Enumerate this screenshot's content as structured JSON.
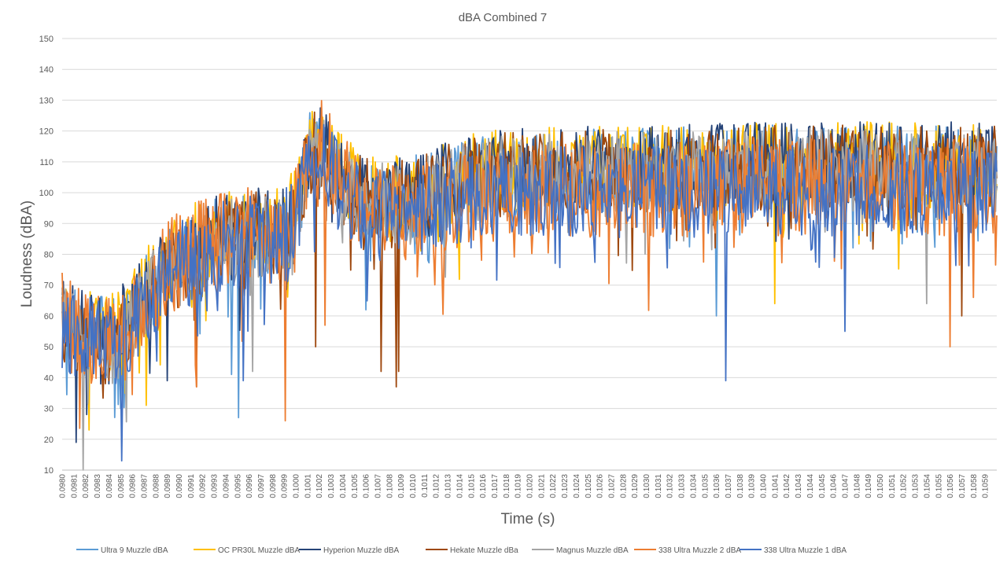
{
  "chart_data": {
    "type": "line",
    "title": "dBA Combined 7",
    "xlabel": "Time (s)",
    "ylabel": "Loudness (dBA)",
    "ylim": [
      10,
      150
    ],
    "yticks": [
      10,
      20,
      30,
      40,
      50,
      60,
      70,
      80,
      90,
      100,
      110,
      120,
      130,
      140,
      150
    ],
    "xlim": [
      0.098,
      0.106
    ],
    "xtick_start": 0.098,
    "xtick_step": 0.0001,
    "xtick_count": 80,
    "grid": true,
    "legend_position": "bottom",
    "series": [
      {
        "name": "Ultra 9 Muzzle dBA",
        "color": "#5B9BD5",
        "anchors": [
          [
            0.098,
            58
          ],
          [
            0.0981,
            56
          ],
          [
            0.0982,
            52
          ],
          [
            0.0983,
            55
          ],
          [
            0.0984,
            52
          ],
          [
            0.0985,
            55
          ],
          [
            0.0986,
            60
          ],
          [
            0.0987,
            66
          ],
          [
            0.0988,
            70
          ],
          [
            0.0989,
            75
          ],
          [
            0.099,
            78
          ],
          [
            0.0991,
            80
          ],
          [
            0.0992,
            82
          ],
          [
            0.0993,
            84
          ],
          [
            0.0994,
            86
          ],
          [
            0.0995,
            84
          ],
          [
            0.0996,
            86
          ],
          [
            0.0997,
            88
          ],
          [
            0.0998,
            86
          ],
          [
            0.0999,
            88
          ],
          [
            0.1,
            92
          ],
          [
            0.1001,
            112
          ],
          [
            0.1002,
            115
          ],
          [
            0.1003,
            110
          ],
          [
            0.1005,
            100
          ],
          [
            0.1007,
            97
          ],
          [
            0.1008,
            97
          ],
          [
            0.101,
            98
          ],
          [
            0.1012,
            100
          ],
          [
            0.1014,
            103
          ],
          [
            0.1016,
            105
          ],
          [
            0.102,
            106
          ],
          [
            0.1025,
            107
          ],
          [
            0.103,
            107
          ],
          [
            0.104,
            108
          ],
          [
            0.105,
            108
          ],
          [
            0.106,
            108
          ]
        ],
        "amp": 14,
        "dips": [
          [
            0.09945,
            41
          ],
          [
            0.09951,
            27
          ],
          [
            0.0985,
            30
          ],
          [
            0.1006,
            62
          ],
          [
            0.1036,
            60
          ]
        ]
      },
      {
        "name": "OC PR30L Muzzle dBA",
        "color": "#FFC000",
        "anchors": [
          [
            0.098,
            62
          ],
          [
            0.0981,
            60
          ],
          [
            0.0982,
            54
          ],
          [
            0.0983,
            56
          ],
          [
            0.0984,
            54
          ],
          [
            0.0985,
            56
          ],
          [
            0.0986,
            62
          ],
          [
            0.0987,
            67
          ],
          [
            0.0988,
            72
          ],
          [
            0.0989,
            76
          ],
          [
            0.099,
            80
          ],
          [
            0.0991,
            82
          ],
          [
            0.0992,
            84
          ],
          [
            0.0993,
            86
          ],
          [
            0.0994,
            88
          ],
          [
            0.0995,
            86
          ],
          [
            0.0996,
            88
          ],
          [
            0.0997,
            90
          ],
          [
            0.0998,
            88
          ],
          [
            0.0999,
            90
          ],
          [
            0.1,
            94
          ],
          [
            0.1001,
            114
          ],
          [
            0.1002,
            116
          ],
          [
            0.1003,
            111
          ],
          [
            0.1005,
            101
          ],
          [
            0.1007,
            98
          ],
          [
            0.1008,
            98
          ],
          [
            0.101,
            99
          ],
          [
            0.1012,
            101
          ],
          [
            0.1014,
            104
          ],
          [
            0.1016,
            106
          ],
          [
            0.102,
            107
          ],
          [
            0.1025,
            108
          ],
          [
            0.103,
            108
          ],
          [
            0.104,
            109
          ],
          [
            0.105,
            109
          ],
          [
            0.106,
            109
          ]
        ],
        "amp": 14,
        "dips": [
          [
            0.09823,
            23
          ],
          [
            0.09872,
            31
          ],
          [
            0.1041,
            64
          ],
          [
            0.1057,
            72
          ]
        ]
      },
      {
        "name": "Hyperion Muzzle dBA",
        "color": "#264478",
        "anchors": [
          [
            0.098,
            60
          ],
          [
            0.0981,
            58
          ],
          [
            0.0982,
            55
          ],
          [
            0.0983,
            57
          ],
          [
            0.0984,
            54
          ],
          [
            0.0985,
            57
          ],
          [
            0.0986,
            62
          ],
          [
            0.0987,
            68
          ],
          [
            0.0988,
            72
          ],
          [
            0.0989,
            77
          ],
          [
            0.099,
            80
          ],
          [
            0.0991,
            82
          ],
          [
            0.0992,
            84
          ],
          [
            0.0993,
            86
          ],
          [
            0.0994,
            87
          ],
          [
            0.0995,
            85
          ],
          [
            0.0996,
            87
          ],
          [
            0.0997,
            89
          ],
          [
            0.0998,
            87
          ],
          [
            0.0999,
            89
          ],
          [
            0.1,
            93
          ],
          [
            0.1001,
            113
          ],
          [
            0.1002,
            116
          ],
          [
            0.1003,
            111
          ],
          [
            0.1005,
            101
          ],
          [
            0.1007,
            98
          ],
          [
            0.1008,
            98
          ],
          [
            0.101,
            99
          ],
          [
            0.1012,
            102
          ],
          [
            0.1014,
            105
          ],
          [
            0.1016,
            107
          ],
          [
            0.102,
            108
          ],
          [
            0.1025,
            109
          ],
          [
            0.103,
            109
          ],
          [
            0.104,
            110
          ],
          [
            0.105,
            110
          ],
          [
            0.106,
            110
          ]
        ],
        "amp": 13,
        "dips": [
          [
            0.09812,
            19
          ],
          [
            0.09821,
            28
          ],
          [
            0.0984,
            38
          ],
          [
            0.0989,
            39
          ]
        ]
      },
      {
        "name": "Hekate Muzzle dBa",
        "color": "#9E480E",
        "anchors": [
          [
            0.098,
            57
          ],
          [
            0.0981,
            55
          ],
          [
            0.0982,
            51
          ],
          [
            0.0983,
            54
          ],
          [
            0.0984,
            51
          ],
          [
            0.0985,
            54
          ],
          [
            0.0986,
            59
          ],
          [
            0.0987,
            65
          ],
          [
            0.0988,
            70
          ],
          [
            0.0989,
            74
          ],
          [
            0.099,
            77
          ],
          [
            0.0991,
            79
          ],
          [
            0.0992,
            81
          ],
          [
            0.0993,
            83
          ],
          [
            0.0994,
            85
          ],
          [
            0.0995,
            83
          ],
          [
            0.0996,
            85
          ],
          [
            0.0997,
            87
          ],
          [
            0.0998,
            85
          ],
          [
            0.0999,
            87
          ],
          [
            0.1,
            91
          ],
          [
            0.1001,
            111
          ],
          [
            0.1002,
            114
          ],
          [
            0.1003,
            109
          ],
          [
            0.1005,
            99
          ],
          [
            0.1007,
            96
          ],
          [
            0.1008,
            96
          ],
          [
            0.101,
            97
          ],
          [
            0.1012,
            100
          ],
          [
            0.1014,
            103
          ],
          [
            0.1016,
            105
          ],
          [
            0.102,
            106
          ],
          [
            0.1025,
            107
          ],
          [
            0.103,
            107
          ],
          [
            0.104,
            108
          ],
          [
            0.105,
            108
          ],
          [
            0.106,
            108
          ]
        ],
        "amp": 14,
        "dips": [
          [
            0.09915,
            37
          ],
          [
            0.10017,
            50
          ],
          [
            0.10073,
            42
          ],
          [
            0.10086,
            37
          ],
          [
            0.10088,
            42
          ],
          [
            0.1057,
            60
          ]
        ]
      },
      {
        "name": "Magnus Muzzle dBA",
        "color": "#A5A5A5",
        "anchors": [
          [
            0.098,
            58
          ],
          [
            0.0981,
            55
          ],
          [
            0.0982,
            50
          ],
          [
            0.0983,
            54
          ],
          [
            0.0984,
            51
          ],
          [
            0.0985,
            54
          ],
          [
            0.0986,
            59
          ],
          [
            0.0987,
            65
          ],
          [
            0.0988,
            70
          ],
          [
            0.0989,
            74
          ],
          [
            0.099,
            77
          ],
          [
            0.0991,
            79
          ],
          [
            0.0992,
            81
          ],
          [
            0.0993,
            83
          ],
          [
            0.0994,
            85
          ],
          [
            0.0995,
            83
          ],
          [
            0.0996,
            85
          ],
          [
            0.0997,
            87
          ],
          [
            0.0998,
            85
          ],
          [
            0.0999,
            87
          ],
          [
            0.1,
            91
          ],
          [
            0.1001,
            110
          ],
          [
            0.1002,
            113
          ],
          [
            0.1003,
            108
          ],
          [
            0.1005,
            99
          ],
          [
            0.1007,
            96
          ],
          [
            0.1008,
            96
          ],
          [
            0.101,
            97
          ],
          [
            0.1012,
            99
          ],
          [
            0.1014,
            102
          ],
          [
            0.1016,
            104
          ],
          [
            0.102,
            105
          ],
          [
            0.1025,
            106
          ],
          [
            0.103,
            106
          ],
          [
            0.104,
            107
          ],
          [
            0.105,
            107
          ],
          [
            0.106,
            107
          ]
        ],
        "amp": 14,
        "dips": [
          [
            0.09818,
            10
          ],
          [
            0.09963,
            42
          ],
          [
            0.1054,
            64
          ]
        ]
      },
      {
        "name": "338 Ultra Muzzle 2 dBA",
        "color": "#ED7D31",
        "anchors": [
          [
            0.098,
            59
          ],
          [
            0.0981,
            57
          ],
          [
            0.0982,
            53
          ],
          [
            0.0983,
            55
          ],
          [
            0.0984,
            52
          ],
          [
            0.0985,
            55
          ],
          [
            0.0986,
            60
          ],
          [
            0.0987,
            66
          ],
          [
            0.0988,
            71
          ],
          [
            0.0989,
            75
          ],
          [
            0.099,
            78
          ],
          [
            0.0991,
            80
          ],
          [
            0.0992,
            82
          ],
          [
            0.0993,
            84
          ],
          [
            0.0994,
            86
          ],
          [
            0.0995,
            84
          ],
          [
            0.0996,
            86
          ],
          [
            0.0997,
            88
          ],
          [
            0.0998,
            86
          ],
          [
            0.0999,
            88
          ],
          [
            0.1,
            92
          ],
          [
            0.1001,
            112
          ],
          [
            0.1002,
            115
          ],
          [
            0.1003,
            110
          ],
          [
            0.1005,
            98
          ],
          [
            0.1007,
            94
          ],
          [
            0.1008,
            93
          ],
          [
            0.101,
            94
          ],
          [
            0.1012,
            96
          ],
          [
            0.1014,
            98
          ],
          [
            0.1016,
            100
          ],
          [
            0.102,
            101
          ],
          [
            0.1025,
            101
          ],
          [
            0.103,
            101
          ],
          [
            0.104,
            102
          ],
          [
            0.105,
            102
          ],
          [
            0.106,
            102
          ]
        ],
        "amp": 16,
        "dips": [
          [
            0.09991,
            26
          ],
          [
            0.09915,
            37
          ],
          [
            0.10025,
            57
          ],
          [
            0.1056,
            50
          ],
          [
            0.1058,
            66
          ]
        ]
      },
      {
        "name": "338 Ultra Muzzle 1 dBA",
        "color": "#4472C4",
        "anchors": [
          [
            0.098,
            57
          ],
          [
            0.0981,
            54
          ],
          [
            0.0982,
            50
          ],
          [
            0.0983,
            53
          ],
          [
            0.0984,
            50
          ],
          [
            0.0985,
            53
          ],
          [
            0.0986,
            58
          ],
          [
            0.0987,
            64
          ],
          [
            0.0988,
            69
          ],
          [
            0.0989,
            73
          ],
          [
            0.099,
            76
          ],
          [
            0.0991,
            78
          ],
          [
            0.0992,
            80
          ],
          [
            0.0993,
            82
          ],
          [
            0.0994,
            84
          ],
          [
            0.0995,
            82
          ],
          [
            0.0996,
            84
          ],
          [
            0.0997,
            86
          ],
          [
            0.0998,
            84
          ],
          [
            0.0999,
            86
          ],
          [
            0.1,
            90
          ],
          [
            0.1001,
            112
          ],
          [
            0.1002,
            112
          ],
          [
            0.1003,
            106
          ],
          [
            0.1005,
            96
          ],
          [
            0.1007,
            92
          ],
          [
            0.1008,
            92
          ],
          [
            0.101,
            93
          ],
          [
            0.1012,
            95
          ],
          [
            0.1014,
            97
          ],
          [
            0.1016,
            99
          ],
          [
            0.102,
            100
          ],
          [
            0.1025,
            100
          ],
          [
            0.103,
            100
          ],
          [
            0.104,
            101
          ],
          [
            0.105,
            101
          ],
          [
            0.106,
            101
          ]
        ],
        "amp": 15,
        "dips": [
          [
            0.09851,
            13
          ],
          [
            0.09955,
            39
          ],
          [
            0.10368,
            39
          ],
          [
            0.1047,
            55
          ]
        ]
      }
    ]
  }
}
